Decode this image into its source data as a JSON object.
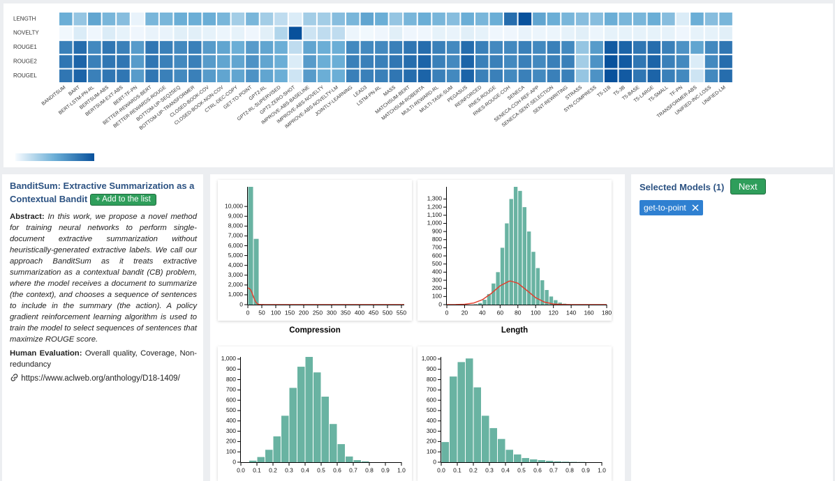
{
  "chart_data": [
    {
      "type": "heatmap",
      "rows": [
        "LENGTH",
        "NOVELTY",
        "ROUGE1",
        "ROUGE2",
        "ROUGEL"
      ],
      "categories": [
        "BANDITSUM",
        "BART",
        "BERT-LSTM-PN-RL",
        "BERTSUM-ABS",
        "BERTSUM-EXT-ABS",
        "BERT-TF-PN",
        "BETTER-REWARDS-BERT",
        "BETTER-REWARDS-ROUGE",
        "BOTTOM-UP-SEQ2SEQ",
        "BOTTOM-UP-TRANSFORMER",
        "CLOSED-BOOK-COV",
        "CLOSED-BOOK-NON-COV",
        "CTRL-DEC-COPY",
        "GET-TO-POINT",
        "GPT2-RL",
        "GPT2-RL-SUPERVISED",
        "GPT2-ZERO-SHOT",
        "IMPROVE-ABS-BASELINE",
        "IMPROVE-ABS-NOVELTY",
        "IMPROVE-ABS-NOVELTY-LM",
        "JOINTLY-LEARNING",
        "LEAD3",
        "LSTM-PN-RL",
        "MASS",
        "MATCHSUM-BERT",
        "MATCHSUM-ROBERTA",
        "MULTI-REWARD-RL",
        "MULTI-TASK-SUM",
        "PEGASUS",
        "REINFORCED",
        "RNES-ROUGE",
        "RNES-ROUGE-COH",
        "SENECA",
        "SENECA-COH-REF-APP",
        "SENECA-SENT-SELECTION",
        "SENT-REWRITING",
        "STRASS",
        "SYN-COMPRESS",
        "T5-11B",
        "T5-3B",
        "T5-BASE",
        "T5-LARGE",
        "T5-SMALL",
        "TF-PN",
        "TRANSFORMER-ABS",
        "UNIFIED-INC-LOSS",
        "UNIFIED-LM"
      ],
      "values": [
        [
          0.5,
          0.35,
          0.55,
          0.45,
          0.4,
          0.05,
          0.45,
          0.45,
          0.5,
          0.5,
          0.5,
          0.45,
          0.3,
          0.45,
          0.3,
          0.2,
          0.1,
          0.3,
          0.3,
          0.4,
          0.45,
          0.55,
          0.5,
          0.35,
          0.45,
          0.5,
          0.45,
          0.4,
          0.5,
          0.45,
          0.5,
          0.85,
          1.0,
          0.55,
          0.5,
          0.45,
          0.4,
          0.4,
          0.5,
          0.45,
          0.45,
          0.5,
          0.4,
          0.1,
          0.5,
          0.4,
          0.45
        ],
        [
          0.02,
          0.1,
          0.03,
          0.1,
          0.06,
          0.03,
          0.05,
          0.05,
          0.08,
          0.08,
          0.06,
          0.04,
          0.06,
          0.03,
          0.08,
          0.25,
          1.0,
          0.15,
          0.2,
          0.2,
          0.04,
          0.02,
          0.03,
          0.08,
          0.03,
          0.03,
          0.06,
          0.05,
          0.08,
          0.06,
          0.03,
          0.03,
          0.05,
          0.04,
          0.04,
          0.06,
          0.08,
          0.04,
          0.06,
          0.06,
          0.06,
          0.06,
          0.06,
          0.03,
          0.06,
          0.06,
          0.08
        ],
        [
          0.75,
          0.85,
          0.7,
          0.8,
          0.75,
          0.6,
          0.8,
          0.75,
          0.7,
          0.75,
          0.6,
          0.55,
          0.5,
          0.6,
          0.55,
          0.5,
          0.2,
          0.55,
          0.5,
          0.5,
          0.7,
          0.7,
          0.7,
          0.75,
          0.8,
          0.85,
          0.75,
          0.7,
          0.85,
          0.75,
          0.7,
          0.7,
          0.75,
          0.7,
          0.75,
          0.7,
          0.35,
          0.6,
          0.95,
          0.9,
          0.8,
          0.85,
          0.75,
          0.65,
          0.55,
          0.7,
          0.8
        ],
        [
          0.8,
          0.9,
          0.75,
          0.8,
          0.8,
          0.6,
          0.8,
          0.75,
          0.7,
          0.75,
          0.6,
          0.55,
          0.55,
          0.65,
          0.55,
          0.5,
          0.1,
          0.6,
          0.5,
          0.5,
          0.75,
          0.75,
          0.75,
          0.8,
          0.85,
          0.9,
          0.75,
          0.7,
          0.9,
          0.75,
          0.75,
          0.7,
          0.75,
          0.7,
          0.75,
          0.75,
          0.3,
          0.65,
          1.0,
          0.95,
          0.8,
          0.9,
          0.75,
          0.7,
          0.1,
          0.7,
          0.85
        ],
        [
          0.8,
          0.9,
          0.75,
          0.8,
          0.8,
          0.6,
          0.8,
          0.75,
          0.7,
          0.75,
          0.6,
          0.55,
          0.55,
          0.65,
          0.55,
          0.5,
          0.15,
          0.6,
          0.5,
          0.5,
          0.75,
          0.75,
          0.75,
          0.8,
          0.85,
          0.9,
          0.75,
          0.7,
          0.9,
          0.75,
          0.75,
          0.7,
          0.75,
          0.7,
          0.75,
          0.75,
          0.35,
          0.65,
          1.0,
          0.95,
          0.8,
          0.9,
          0.75,
          0.7,
          0.15,
          0.7,
          0.85
        ]
      ],
      "color_scale": [
        "#f7fbff",
        "#6baed6",
        "#08519c"
      ]
    },
    {
      "type": "histogram",
      "title": "Compression",
      "bins": [
        0,
        20,
        40,
        60
      ],
      "values": [
        12000,
        6700,
        40
      ],
      "color": "#69b3a2",
      "density_x": [
        0,
        5,
        10,
        15,
        20,
        25,
        30,
        35,
        40,
        60,
        100,
        200,
        300,
        400,
        500,
        560
      ],
      "density": [
        1700,
        1650,
        1500,
        1200,
        800,
        450,
        200,
        80,
        20,
        0,
        0,
        0,
        0,
        0,
        0,
        0
      ],
      "line_color": "#e0402f",
      "xlim": [
        0,
        560
      ],
      "xticks": [
        0,
        50,
        100,
        150,
        200,
        250,
        300,
        350,
        400,
        450,
        500,
        550
      ],
      "ylim": [
        0,
        12000
      ],
      "yticks": [
        0,
        {
          "value": 1000,
          "label": "1,000"
        },
        {
          "value": 2000,
          "label": "2,000"
        },
        {
          "value": 3000,
          "label": "3,000"
        },
        {
          "value": 4000,
          "label": "4,000"
        },
        {
          "value": 5000,
          "label": "5,000"
        },
        {
          "value": 6000,
          "label": "6,000"
        },
        {
          "value": 7000,
          "label": "7,000"
        },
        {
          "value": 8000,
          "label": "8,000"
        },
        {
          "value": 9000,
          "label": "9,000"
        },
        {
          "value": 10000,
          "label": "10,000"
        }
      ]
    },
    {
      "type": "histogram",
      "title": "Length",
      "bins": [
        30,
        35,
        40,
        45,
        50,
        55,
        60,
        65,
        70,
        75,
        80,
        85,
        90,
        95,
        100,
        105,
        110,
        115,
        120,
        125,
        130,
        135,
        140
      ],
      "values": [
        5,
        20,
        60,
        130,
        260,
        400,
        700,
        1000,
        1300,
        1450,
        1400,
        1200,
        900,
        650,
        450,
        300,
        180,
        100,
        55,
        25,
        12,
        5
      ],
      "color": "#69b3a2",
      "density_x": [
        0,
        10,
        20,
        30,
        40,
        50,
        60,
        70,
        72,
        80,
        90,
        100,
        110,
        120,
        130,
        140,
        160,
        180
      ],
      "density": [
        0,
        1,
        4,
        19,
        60,
        137,
        232,
        288,
        290,
        263,
        176,
        86,
        31,
        8,
        2,
        0,
        0,
        0
      ],
      "line_color": "#e0402f",
      "xlim": [
        0,
        180
      ],
      "xticks": [
        0,
        20,
        40,
        60,
        80,
        100,
        120,
        140,
        160,
        180
      ],
      "ylim": [
        0,
        1450
      ],
      "yticks": [
        0,
        100,
        200,
        300,
        400,
        500,
        600,
        700,
        800,
        900,
        {
          "value": 1000,
          "label": "1,000"
        },
        {
          "value": 1100,
          "label": "1,100"
        },
        {
          "value": 1200,
          "label": "1,200"
        },
        {
          "value": 1300,
          "label": "1,300"
        }
      ]
    },
    {
      "type": "histogram",
      "bins": [
        0.05,
        0.1,
        0.15,
        0.2,
        0.25,
        0.3,
        0.35,
        0.4,
        0.45,
        0.5,
        0.55,
        0.6,
        0.65,
        0.7,
        0.75,
        0.8
      ],
      "values": [
        15,
        50,
        120,
        250,
        450,
        720,
        925,
        1020,
        870,
        635,
        370,
        175,
        55,
        20,
        8
      ],
      "color": "#69b3a2",
      "xlim": [
        0,
        1
      ],
      "xticks": [
        {
          "value": 0,
          "label": "0.0"
        },
        0.1,
        0.2,
        0.3,
        0.4,
        0.5,
        0.6,
        0.7,
        0.8,
        0.9,
        {
          "value": 1,
          "label": "1.0"
        }
      ],
      "ylim": [
        0,
        1020
      ],
      "yticks": [
        0,
        100,
        200,
        300,
        400,
        500,
        600,
        700,
        800,
        900,
        {
          "value": 1000,
          "label": "1,000"
        }
      ]
    },
    {
      "type": "histogram",
      "bins": [
        0,
        0.05,
        0.1,
        0.15,
        0.2,
        0.25,
        0.3,
        0.35,
        0.4,
        0.45,
        0.5,
        0.55,
        0.6,
        0.65,
        0.7,
        0.75,
        0.8,
        0.85,
        0.9
      ],
      "values": [
        195,
        830,
        970,
        1005,
        725,
        450,
        330,
        225,
        120,
        75,
        40,
        27,
        20,
        13,
        8,
        5,
        3,
        2
      ],
      "color": "#69b3a2",
      "xlim": [
        0,
        1
      ],
      "xticks": [
        {
          "value": 0,
          "label": "0.0"
        },
        0.1,
        0.2,
        0.3,
        0.4,
        0.5,
        0.6,
        0.7,
        0.8,
        0.9,
        {
          "value": 1,
          "label": "1.0"
        }
      ],
      "ylim": [
        0,
        1020
      ],
      "yticks": [
        0,
        100,
        200,
        300,
        400,
        500,
        600,
        700,
        800,
        900,
        {
          "value": 1000,
          "label": "1,000"
        }
      ]
    }
  ],
  "paper": {
    "title": "BanditSum: Extractive Summarization as a Contextual Bandit",
    "add_button": "+ Add to the list",
    "abstract_label": "Abstract:",
    "abstract": "In this work, we propose a novel method for training neural networks to perform single-document extractive summarization without heuristically-generated extractive labels. We call our approach BanditSum as it treats extractive summarization as a contextual bandit (CB) problem, where the model receives a document to summarize (the context), and chooses a sequence of sentences to include in the summary (the action). A policy gradient reinforcement learning algorithm is used to train the model to select sequences of sentences that maximize ROUGE score.",
    "human_eval_label": "Human Evaluation:",
    "human_eval": "Overall quality, Coverage, Non-redundancy",
    "url": "https://www.aclweb.org/anthology/D18-1409/"
  },
  "selection": {
    "title": "Selected Models (1)",
    "next_button": "Next",
    "models": [
      "get-to-point"
    ]
  }
}
